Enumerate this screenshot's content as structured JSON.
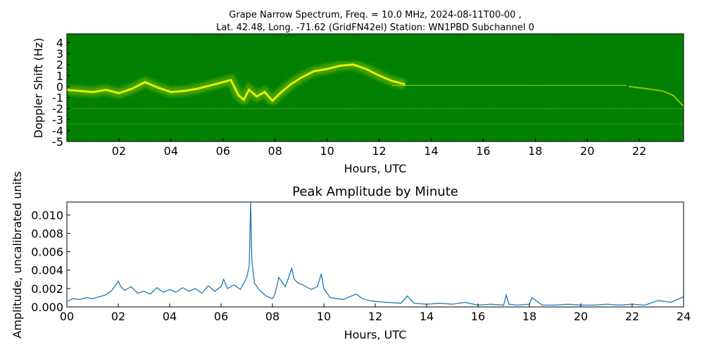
{
  "title_line1": "Grape Narrow Spectrum, Freq. = 10.0 MHz, 2024-08-11T00-00 ,",
  "title_line2": "Lat.  42.48, Long. -71.62 (GridFN42el) Station: WN1PBD Subchannel 0",
  "colors": {
    "spectrogram_background": "#008000",
    "spectrogram_signal": "#ffff00",
    "amplitude_line": "#1f77b4"
  },
  "chart_data": [
    {
      "type": "heatmap",
      "title": "",
      "xlabel": "Hours, UTC",
      "ylabel": "Doppler Shift (Hz)",
      "xlim": [
        0,
        23.7
      ],
      "ylim": [
        -5,
        4.8
      ],
      "xticks": [
        "02",
        "04",
        "06",
        "08",
        "10",
        "12",
        "14",
        "16",
        "18",
        "20",
        "22"
      ],
      "xtick_values": [
        2,
        4,
        6,
        8,
        10,
        12,
        14,
        16,
        18,
        20,
        22
      ],
      "yticks": [
        "4",
        "3",
        "2",
        "1",
        "0",
        "-1",
        "-2",
        "-3",
        "-4",
        "-5"
      ],
      "ytick_values": [
        4,
        3,
        2,
        1,
        0,
        -1,
        -2,
        -3,
        -4,
        -5
      ],
      "colormap": "green-to-yellow",
      "doppler_trace": {
        "x": [
          0,
          0.5,
          1,
          1.5,
          2,
          2.5,
          3,
          3.5,
          4,
          4.5,
          5,
          5.5,
          6,
          6.3,
          6.6,
          6.8,
          7,
          7.3,
          7.6,
          7.9,
          8.2,
          8.6,
          9,
          9.5,
          10,
          10.5,
          11,
          11.5,
          12,
          12.5,
          13
        ],
        "y": [
          -0.3,
          -0.4,
          -0.5,
          -0.3,
          -0.6,
          -0.2,
          0.4,
          -0.1,
          -0.5,
          -0.4,
          -0.2,
          0.1,
          0.4,
          0.6,
          -0.8,
          -1.2,
          -0.3,
          -0.9,
          -0.5,
          -1.3,
          -0.6,
          0.2,
          0.8,
          1.4,
          1.6,
          1.9,
          2.0,
          1.6,
          1.0,
          0.5,
          0.2
        ]
      },
      "carrier_line_end_hours": 21.5
    },
    {
      "type": "line",
      "title": "Peak Amplitude by Minute",
      "xlabel": "Hours, UTC",
      "ylabel": "Amplitude, uncalibrated units",
      "xlim": [
        0,
        24
      ],
      "ylim": [
        0,
        0.0114
      ],
      "grid": false,
      "xticks": [
        "00",
        "02",
        "04",
        "06",
        "08",
        "10",
        "12",
        "14",
        "16",
        "18",
        "20",
        "22",
        "24"
      ],
      "xtick_values": [
        0,
        2,
        4,
        6,
        8,
        10,
        12,
        14,
        16,
        18,
        20,
        22,
        24
      ],
      "yticks": [
        "0.000",
        "0.002",
        "0.004",
        "0.006",
        "0.008",
        "0.010"
      ],
      "ytick_values": [
        0,
        0.002,
        0.004,
        0.006,
        0.008,
        0.01
      ],
      "series": [
        {
          "x": [
            0,
            0.25,
            0.5,
            0.75,
            1,
            1.25,
            1.5,
            1.75,
            2,
            2.1,
            2.25,
            2.5,
            2.75,
            3,
            3.25,
            3.5,
            3.75,
            4,
            4.25,
            4.5,
            4.75,
            5,
            5.25,
            5.5,
            5.75,
            6,
            6.1,
            6.25,
            6.5,
            6.75,
            7,
            7.1,
            7.15,
            7.2,
            7.25,
            7.3,
            7.5,
            7.75,
            8,
            8.1,
            8.25,
            8.5,
            8.75,
            8.85,
            9,
            9.25,
            9.5,
            9.75,
            9.9,
            10,
            10.25,
            10.5,
            10.75,
            11,
            11.25,
            11.5,
            11.75,
            12,
            12.5,
            13,
            13.25,
            13.5,
            14,
            14.5,
            15,
            15.5,
            16,
            16.5,
            17,
            17.1,
            17.2,
            17.5,
            18,
            18.1,
            18.5,
            19,
            19.5,
            20,
            20.5,
            21,
            21.5,
            22,
            22.5,
            23,
            23.5,
            24
          ],
          "y": [
            0.0006,
            0.0009,
            0.0008,
            0.001,
            0.0009,
            0.0011,
            0.0013,
            0.0018,
            0.0028,
            0.0022,
            0.0018,
            0.0022,
            0.0015,
            0.0017,
            0.0014,
            0.0021,
            0.0016,
            0.0019,
            0.0016,
            0.0021,
            0.0017,
            0.002,
            0.0015,
            0.0023,
            0.0017,
            0.0022,
            0.003,
            0.002,
            0.0024,
            0.0019,
            0.0032,
            0.0045,
            0.0114,
            0.005,
            0.0038,
            0.0026,
            0.0018,
            0.0012,
            0.0009,
            0.0014,
            0.0032,
            0.0022,
            0.0042,
            0.003,
            0.0026,
            0.0023,
            0.0019,
            0.0022,
            0.0036,
            0.002,
            0.001,
            0.0009,
            0.0008,
            0.0011,
            0.0014,
            0.0009,
            0.0007,
            0.0006,
            0.0005,
            0.0004,
            0.0012,
            0.0004,
            0.0003,
            0.0004,
            0.0003,
            0.0005,
            0.0002,
            0.0003,
            0.0002,
            0.0013,
            0.0003,
            0.0002,
            0.0003,
            0.001,
            0.0002,
            0.0002,
            0.0003,
            0.0002,
            0.0002,
            0.0003,
            0.0002,
            0.0003,
            0.0002,
            0.0007,
            0.0005,
            0.0011
          ]
        }
      ]
    }
  ]
}
